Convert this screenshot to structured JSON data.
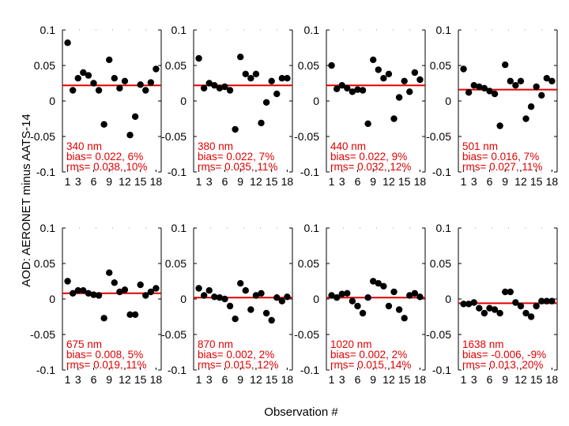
{
  "chart_data": {
    "type": "scatter",
    "layout": "2x4 small multiples",
    "ylabel": "AOD: AERONET minus AATS-14",
    "xlabel": "Observation #",
    "ylim": [
      -0.1,
      0.1
    ],
    "yticks": [
      "0.1",
      "0.05",
      "0",
      "-0.05",
      "-0.1"
    ],
    "xlim": [
      0,
      19
    ],
    "xticks": [
      1,
      3,
      6,
      9,
      12,
      15,
      18
    ],
    "xtick_labels": [
      "1",
      "3",
      "6",
      "9",
      "12",
      "15",
      "18"
    ],
    "colors": {
      "points": "#000000",
      "bias_line": "#e00000",
      "annotation": "#e00000"
    },
    "panels": [
      {
        "wavelength": "340 nm",
        "bias_text": "bias= 0.022,   6%",
        "rms_text": "rms= 0.038,  10%",
        "bias": 0.022,
        "points": [
          [
            1,
            0.082
          ],
          [
            2,
            0.015
          ],
          [
            3,
            0.032
          ],
          [
            4,
            0.04
          ],
          [
            5,
            0.036
          ],
          [
            6,
            0.025
          ],
          [
            7,
            0.015
          ],
          [
            8,
            -0.033
          ],
          [
            9,
            0.058
          ],
          [
            10,
            0.032
          ],
          [
            11,
            0.018
          ],
          [
            12,
            0.028
          ],
          [
            13,
            -0.048
          ],
          [
            14,
            -0.022
          ],
          [
            15,
            0.023
          ],
          [
            16,
            0.015
          ],
          [
            17,
            0.026
          ],
          [
            18,
            0.045
          ]
        ]
      },
      {
        "wavelength": "380 nm",
        "bias_text": "bias= 0.022,   7%",
        "rms_text": "rms= 0.035,  11%",
        "bias": 0.022,
        "points": [
          [
            1,
            0.06
          ],
          [
            2,
            0.018
          ],
          [
            3,
            0.025
          ],
          [
            4,
            0.022
          ],
          [
            5,
            0.018
          ],
          [
            6,
            0.02
          ],
          [
            7,
            0.015
          ],
          [
            8,
            -0.04
          ],
          [
            9,
            0.062
          ],
          [
            10,
            0.038
          ],
          [
            11,
            0.032
          ],
          [
            12,
            0.038
          ],
          [
            13,
            -0.031
          ],
          [
            14,
            -0.002
          ],
          [
            15,
            0.028
          ],
          [
            16,
            0.01
          ],
          [
            17,
            0.032
          ],
          [
            18,
            0.032
          ]
        ]
      },
      {
        "wavelength": "440 nm",
        "bias_text": "bias= 0.022,   9%",
        "rms_text": "rms= 0.032,  12%",
        "bias": 0.022,
        "points": [
          [
            1,
            0.05
          ],
          [
            2,
            0.017
          ],
          [
            3,
            0.022
          ],
          [
            4,
            0.018
          ],
          [
            5,
            0.013
          ],
          [
            6,
            0.016
          ],
          [
            7,
            0.015
          ],
          [
            8,
            -0.032
          ],
          [
            9,
            0.058
          ],
          [
            10,
            0.044
          ],
          [
            11,
            0.032
          ],
          [
            12,
            0.038
          ],
          [
            13,
            -0.025
          ],
          [
            14,
            0.005
          ],
          [
            15,
            0.028
          ],
          [
            16,
            0.013
          ],
          [
            17,
            0.04
          ],
          [
            18,
            0.03
          ]
        ]
      },
      {
        "wavelength": "501 nm",
        "bias_text": "bias= 0.016,   7%",
        "rms_text": "rms= 0.027,  11%",
        "bias": 0.016,
        "points": [
          [
            1,
            0.045
          ],
          [
            2,
            0.012
          ],
          [
            3,
            0.022
          ],
          [
            4,
            0.02
          ],
          [
            5,
            0.018
          ],
          [
            6,
            0.014
          ],
          [
            7,
            0.01
          ],
          [
            8,
            -0.035
          ],
          [
            9,
            0.051
          ],
          [
            10,
            0.028
          ],
          [
            11,
            0.022
          ],
          [
            12,
            0.028
          ],
          [
            13,
            -0.025
          ],
          [
            14,
            -0.008
          ],
          [
            15,
            0.02
          ],
          [
            16,
            0.008
          ],
          [
            17,
            0.032
          ],
          [
            18,
            0.028
          ]
        ]
      },
      {
        "wavelength": "675 nm",
        "bias_text": "bias= 0.008,   5%",
        "rms_text": "rms= 0.019,  11%",
        "bias": 0.008,
        "points": [
          [
            1,
            0.025
          ],
          [
            2,
            0.008
          ],
          [
            3,
            0.012
          ],
          [
            4,
            0.012
          ],
          [
            5,
            0.008
          ],
          [
            6,
            0.006
          ],
          [
            7,
            0.005
          ],
          [
            8,
            -0.027
          ],
          [
            9,
            0.037
          ],
          [
            10,
            0.023
          ],
          [
            11,
            0.01
          ],
          [
            12,
            0.013
          ],
          [
            13,
            -0.022
          ],
          [
            14,
            -0.022
          ],
          [
            15,
            0.02
          ],
          [
            16,
            0.005
          ],
          [
            17,
            0.01
          ],
          [
            18,
            0.015
          ]
        ]
      },
      {
        "wavelength": "870 nm",
        "bias_text": "bias= 0.002,   2%",
        "rms_text": "rms= 0.015,  12%",
        "bias": 0.002,
        "points": [
          [
            1,
            0.015
          ],
          [
            2,
            0.005
          ],
          [
            3,
            0.012
          ],
          [
            4,
            0.003
          ],
          [
            5,
            0.002
          ],
          [
            6,
            0.0
          ],
          [
            7,
            -0.01
          ],
          [
            8,
            -0.028
          ],
          [
            9,
            0.022
          ],
          [
            10,
            0.012
          ],
          [
            11,
            -0.015
          ],
          [
            12,
            0.005
          ],
          [
            13,
            0.008
          ],
          [
            14,
            -0.02
          ],
          [
            15,
            -0.03
          ],
          [
            16,
            0.002
          ],
          [
            17,
            -0.003
          ],
          [
            18,
            0.003
          ]
        ]
      },
      {
        "wavelength": "1020 nm",
        "bias_text": "bias= 0.002,   2%",
        "rms_text": "rms= 0.015,  14%",
        "bias": 0.002,
        "points": [
          [
            1,
            0.005
          ],
          [
            2,
            0.002
          ],
          [
            3,
            0.007
          ],
          [
            4,
            0.008
          ],
          [
            5,
            -0.003
          ],
          [
            6,
            -0.01
          ],
          [
            7,
            -0.02
          ],
          [
            8,
            0.002
          ],
          [
            9,
            0.025
          ],
          [
            10,
            0.022
          ],
          [
            11,
            0.018
          ],
          [
            12,
            -0.01
          ],
          [
            13,
            0.01
          ],
          [
            14,
            -0.015
          ],
          [
            15,
            -0.027
          ],
          [
            16,
            0.005
          ],
          [
            17,
            0.008
          ],
          [
            18,
            0.003
          ]
        ]
      },
      {
        "wavelength": "1638 nm",
        "bias_text": "bias= -0.006,  -9%",
        "rms_text": "rms= 0.013,  20%",
        "bias": -0.006,
        "points": [
          [
            1,
            -0.007
          ],
          [
            2,
            -0.007
          ],
          [
            3,
            -0.005
          ],
          [
            4,
            -0.013
          ],
          [
            5,
            -0.02
          ],
          [
            6,
            -0.013
          ],
          [
            7,
            -0.015
          ],
          [
            8,
            -0.02
          ],
          [
            9,
            0.01
          ],
          [
            10,
            0.01
          ],
          [
            11,
            -0.005
          ],
          [
            12,
            -0.01
          ],
          [
            13,
            -0.02
          ],
          [
            14,
            -0.025
          ],
          [
            15,
            -0.01
          ],
          [
            16,
            -0.003
          ],
          [
            17,
            -0.003
          ],
          [
            18,
            -0.003
          ]
        ]
      }
    ]
  }
}
